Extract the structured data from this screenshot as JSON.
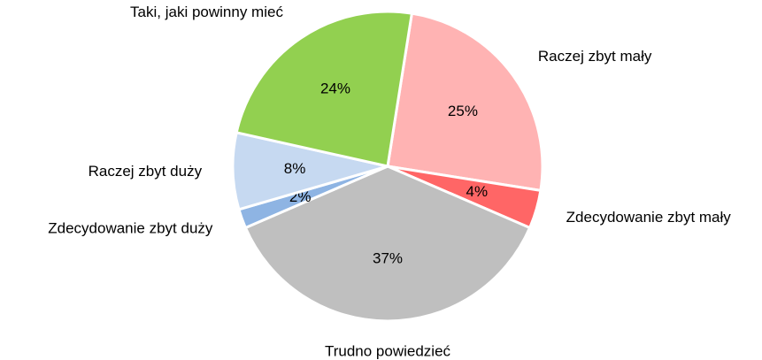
{
  "chart_data": {
    "type": "pie",
    "categories": [
      "Raczej zbyt mały",
      "Zdecydowanie zbyt mały",
      "Trudno powiedzieć",
      "Zdecydowanie zbyt duży",
      "Raczej zbyt duży",
      "Taki, jaki powinny mieć"
    ],
    "values": [
      25,
      4,
      37,
      2,
      8,
      24
    ],
    "value_labels": [
      "25%",
      "4%",
      "37%",
      "2%",
      "8%",
      "24%"
    ],
    "colors": [
      "#ffb3b3",
      "#ff6666",
      "#bfbfbf",
      "#8eb4e3",
      "#c6d9f1",
      "#92d050"
    ]
  }
}
